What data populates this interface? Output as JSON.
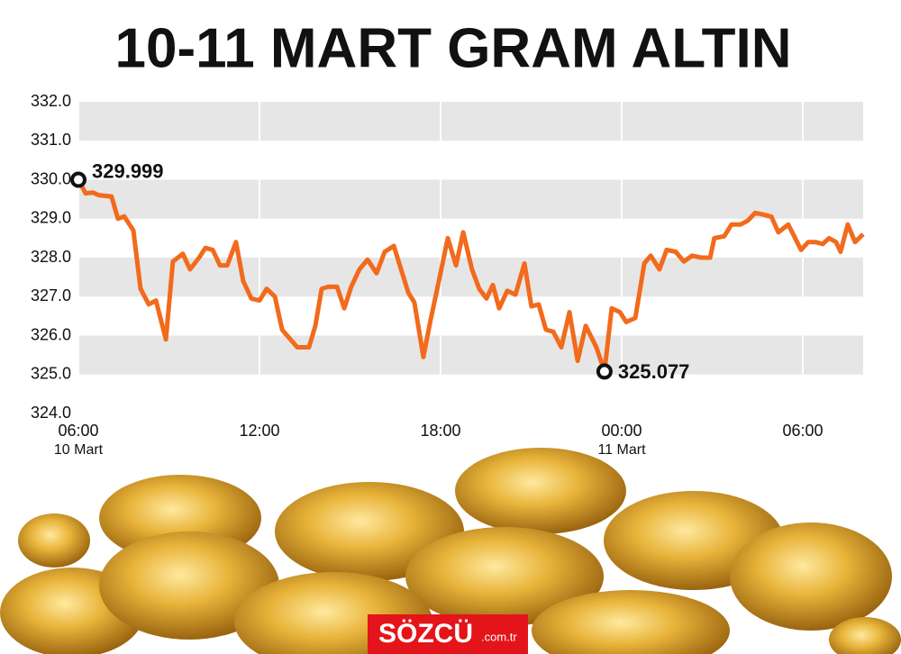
{
  "chart_data": {
    "type": "line",
    "title": "10-11 MART GRAM ALTIN",
    "color": "#f26a1b",
    "grid": "bands",
    "xlim": [
      0,
      26
    ],
    "xticks": [
      {
        "value": 0,
        "label": "06:00"
      },
      {
        "value": 6,
        "label": "12:00"
      },
      {
        "value": 12,
        "label": "18:00"
      },
      {
        "value": 18,
        "label": "00:00"
      },
      {
        "value": 24,
        "label": "06:00"
      }
    ],
    "xtick_dates": [
      {
        "value": 0,
        "label": "10 Mart"
      },
      {
        "value": 18,
        "label": "11 Mart"
      }
    ],
    "ylim": [
      324,
      332
    ],
    "yticks": [
      {
        "value": 324,
        "label": "324.0"
      },
      {
        "value": 325,
        "label": "325.0"
      },
      {
        "value": 326,
        "label": "326.0"
      },
      {
        "value": 327,
        "label": "327.0"
      },
      {
        "value": 328,
        "label": "328.0"
      },
      {
        "value": 329,
        "label": "329.0"
      },
      {
        "value": 330,
        "label": "330.0"
      },
      {
        "value": 331,
        "label": "331.0"
      },
      {
        "value": 332,
        "label": "332.0"
      }
    ],
    "x": [
      0,
      0.24,
      0.48,
      0.69,
      1.1,
      1.31,
      1.52,
      1.82,
      2.06,
      2.33,
      2.57,
      2.9,
      3.13,
      3.46,
      3.7,
      4,
      4.21,
      4.45,
      4.69,
      4.93,
      5.22,
      5.46,
      5.73,
      6,
      6.24,
      6.51,
      6.75,
      7.25,
      7.64,
      7.85,
      8.06,
      8.27,
      8.57,
      8.81,
      9.04,
      9.31,
      9.58,
      9.88,
      10.15,
      10.45,
      10.69,
      10.93,
      11.13,
      11.43,
      11.67,
      11.97,
      12.24,
      12.51,
      12.75,
      13.04,
      13.28,
      13.52,
      13.73,
      13.94,
      14.21,
      14.48,
      14.78,
      15.01,
      15.25,
      15.49,
      15.73,
      16,
      16.27,
      16.54,
      16.81,
      17.16,
      17.43,
      17.67,
      17.94,
      18.15,
      18.45,
      18.75,
      18.96,
      19.25,
      19.49,
      19.79,
      20.06,
      20.33,
      20.63,
      20.93,
      21.07,
      21.4,
      21.64,
      21.94,
      22.18,
      22.42,
      22.72,
      22.96,
      23.19,
      23.52,
      23.94,
      24.18,
      24.42,
      24.66,
      24.87,
      25.1,
      25.25,
      25.49,
      25.73,
      26
    ],
    "values": [
      329.999,
      329.65,
      329.67,
      329.6,
      329.57,
      329.0,
      329.06,
      328.7,
      327.2,
      326.8,
      326.9,
      325.9,
      327.9,
      328.1,
      327.7,
      328.0,
      328.25,
      328.2,
      327.8,
      327.8,
      328.4,
      327.4,
      326.95,
      326.9,
      327.2,
      327.0,
      326.15,
      325.7,
      325.7,
      326.25,
      327.2,
      327.25,
      327.25,
      326.7,
      327.25,
      327.7,
      327.95,
      327.6,
      328.15,
      328.3,
      327.7,
      327.1,
      326.85,
      325.45,
      326.4,
      327.5,
      328.5,
      327.8,
      328.65,
      327.7,
      327.2,
      326.95,
      327.3,
      326.7,
      327.15,
      327.05,
      327.85,
      326.75,
      326.8,
      326.15,
      326.1,
      325.7,
      326.6,
      325.35,
      326.25,
      325.7,
      325.077,
      326.7,
      326.6,
      326.35,
      326.45,
      327.85,
      328.05,
      327.7,
      328.2,
      328.15,
      327.9,
      328.05,
      328.0,
      328.0,
      328.5,
      328.55,
      328.85,
      328.85,
      328.95,
      329.15,
      329.1,
      329.05,
      328.65,
      328.85,
      328.2,
      328.4,
      328.4,
      328.35,
      328.5,
      328.4,
      328.15,
      328.85,
      328.4,
      328.6
    ],
    "annotations": [
      {
        "x": 0,
        "y": 329.999
      },
      {
        "x": 17.43,
        "y": 325.077
      }
    ],
    "brand": "SÖZCÜ",
    "brand_suffix": ".com.tr"
  }
}
